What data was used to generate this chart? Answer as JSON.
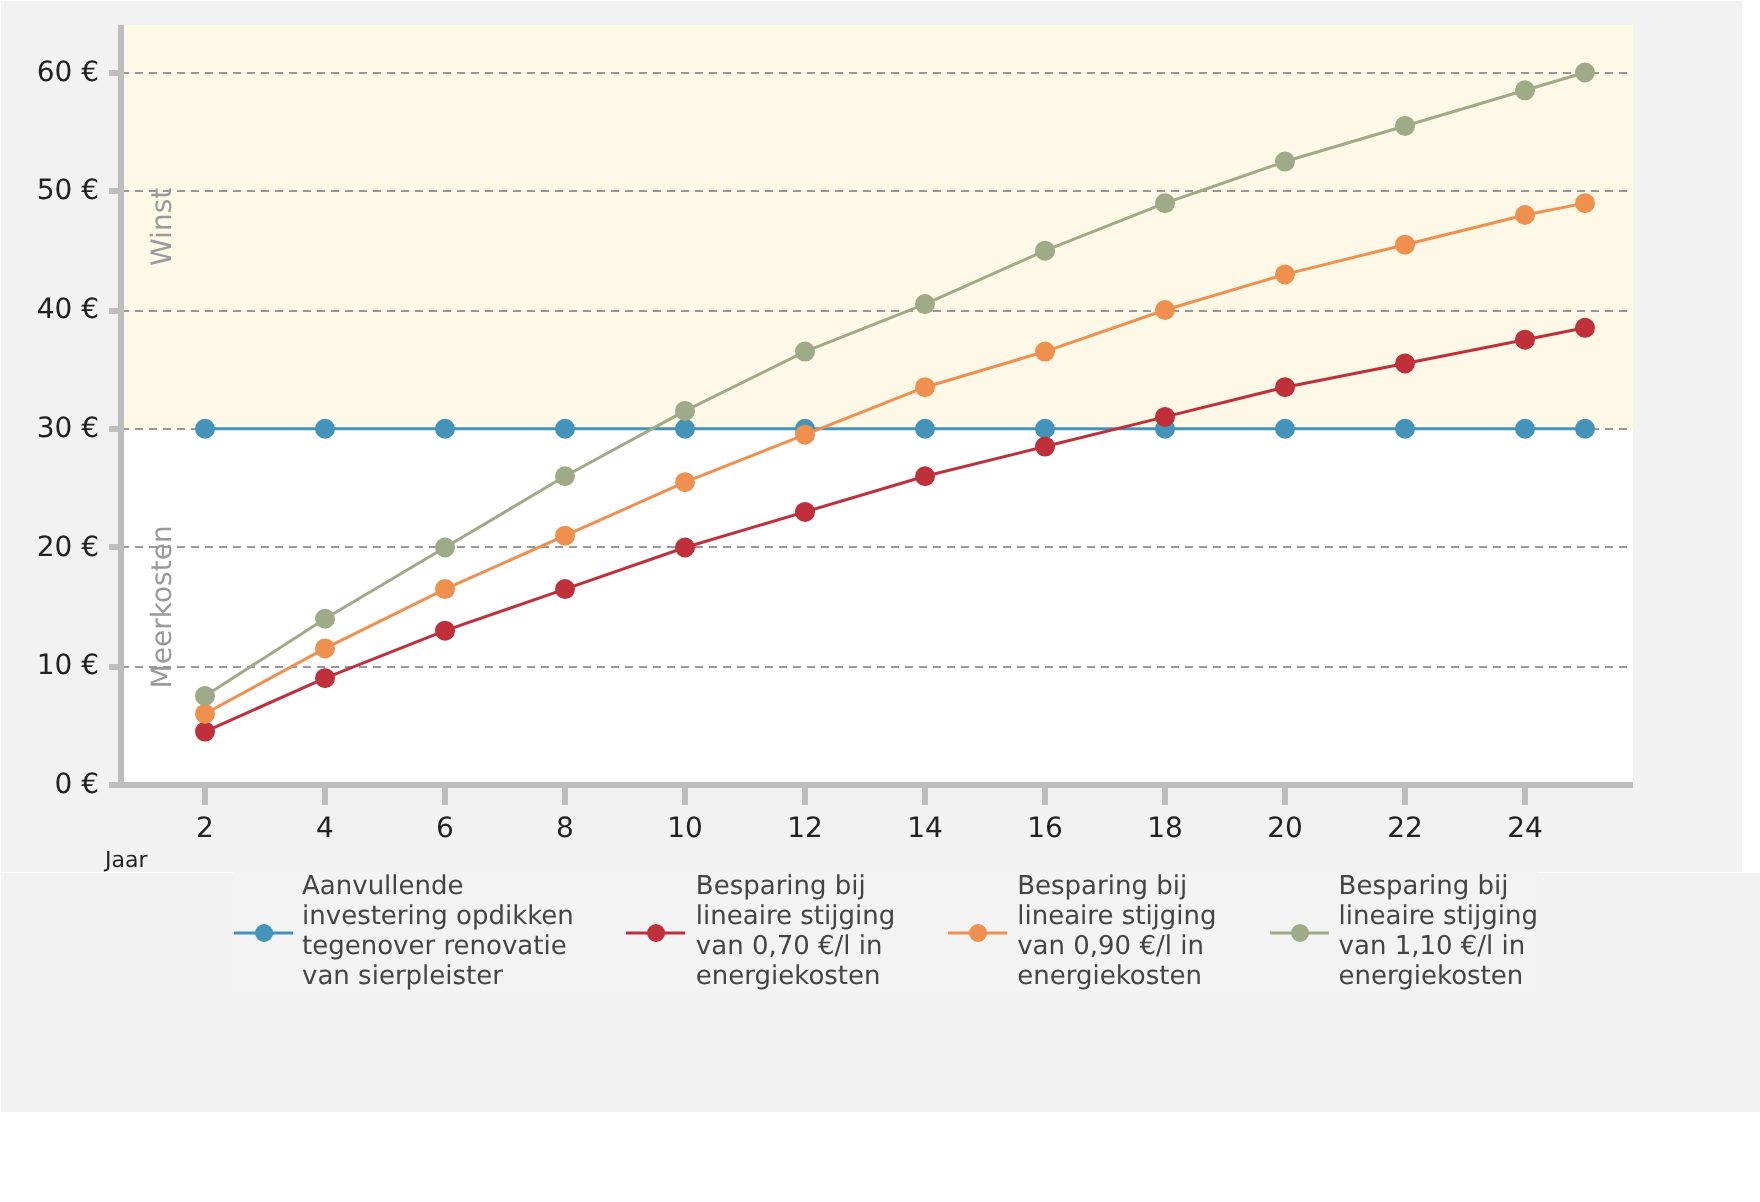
{
  "chart_data": {
    "type": "line",
    "xlabel": "Jaar",
    "x": [
      2,
      4,
      6,
      8,
      10,
      12,
      14,
      16,
      18,
      20,
      22,
      24,
      25
    ],
    "series": [
      {
        "name": "Aanvullende investering opdikken tegenover renovatie van sierpleister",
        "color": "#4394b8",
        "values": [
          30,
          30,
          30,
          30,
          30,
          30,
          30,
          30,
          30,
          30,
          30,
          30,
          30
        ]
      },
      {
        "name": "Besparing bij lineaire stijging van 0,70 €/l in energiekosten",
        "color": "#c0303a",
        "values": [
          4.5,
          9,
          13,
          16.5,
          20,
          23,
          26,
          28.5,
          31,
          33.5,
          35.5,
          37.5,
          38.5
        ]
      },
      {
        "name": "Besparing bij lineaire stijging van 0,90 €/l in energiekosten",
        "color": "#f0904f",
        "values": [
          6,
          11.5,
          16.5,
          21,
          25.5,
          29.5,
          33.5,
          36.5,
          40,
          43,
          45.5,
          48,
          49
        ]
      },
      {
        "name": "Besparing bij lineaire stijging van 1,10 €/l in energiekosten",
        "color": "#9faa88",
        "values": [
          7.5,
          14,
          20,
          26,
          31.5,
          36.5,
          40.5,
          45,
          49,
          52.5,
          55.5,
          58.5,
          60
        ]
      }
    ],
    "xlim": [
      0.6,
      25.8
    ],
    "ylim": [
      0,
      64
    ],
    "xticks": [
      2,
      4,
      6,
      8,
      10,
      12,
      14,
      16,
      18,
      20,
      22,
      24
    ],
    "yticks": [
      {
        "value": 0,
        "label": "0 €"
      },
      {
        "value": 10,
        "label": "10 €"
      },
      {
        "value": 20,
        "label": "20 €"
      },
      {
        "value": 30,
        "label": "30 €"
      },
      {
        "value": 40,
        "label": "40 €"
      },
      {
        "value": 50,
        "label": "50 €"
      },
      {
        "value": 60,
        "label": "60 €"
      }
    ],
    "bands": [
      {
        "axis": "y",
        "from": 30,
        "to": 64,
        "label": "Winst",
        "color": "#fef9e6"
      },
      {
        "axis": "y",
        "from": 0,
        "to": 30,
        "label": "Meerkosten",
        "color": "#ffffff"
      }
    ],
    "grid": "y",
    "legend": "bottom",
    "marker": "circle",
    "line_style": "solid"
  }
}
